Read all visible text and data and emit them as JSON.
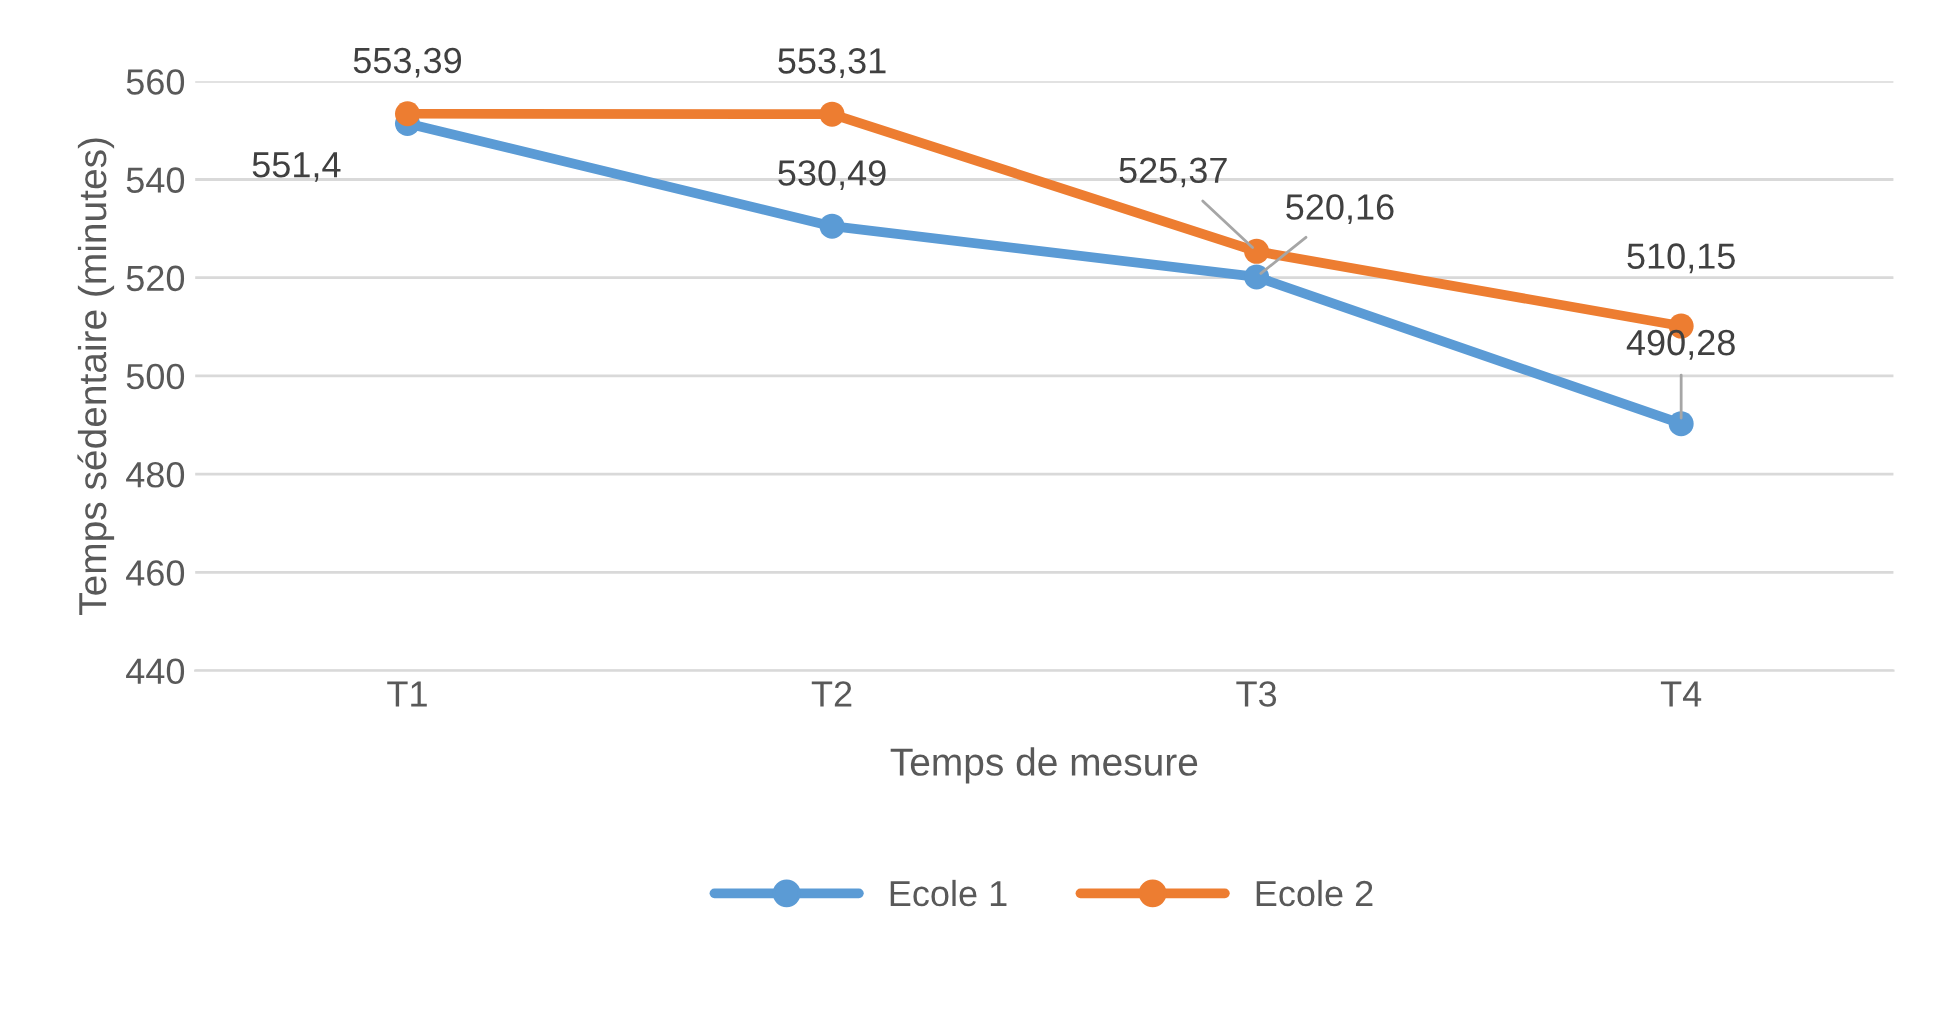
{
  "chart_data": {
    "type": "line",
    "xlabel": "Temps de mesure",
    "ylabel": "Temps sédentaire (minutes)",
    "categories": [
      "T1",
      "T2",
      "T3",
      "T4"
    ],
    "series": [
      {
        "name": "Ecole 1",
        "color": "#5b9bd5",
        "values": [
          551.4,
          530.49,
          520.16,
          490.28
        ],
        "value_labels": [
          "551,4",
          "530,49",
          "520,16",
          "490,28"
        ]
      },
      {
        "name": "Ecole 2",
        "color": "#ed7d31",
        "values": [
          553.39,
          553.31,
          525.37,
          510.15
        ],
        "value_labels": [
          "553,39",
          "553,31",
          "525,37",
          "510,15"
        ]
      }
    ],
    "ylim": [
      440,
      560
    ],
    "yticks": [
      440,
      460,
      480,
      500,
      520,
      540,
      560
    ],
    "grid": "y",
    "legend": "bottom",
    "marker": "circle",
    "line_style": "solid"
  }
}
